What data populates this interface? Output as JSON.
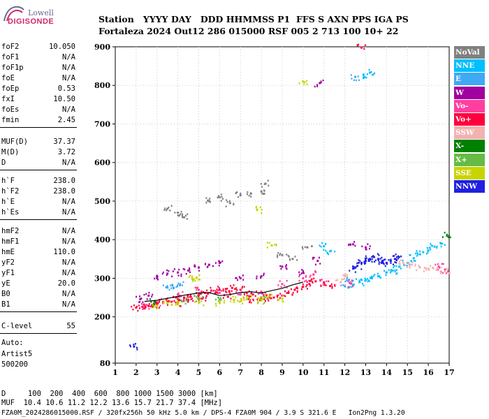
{
  "logo": {
    "top_text": "Lowell",
    "main_text": "DIGISONDE"
  },
  "header": {
    "line1": "Station   YYYY DAY   DDD HHMMSS P1  FFS S AXN PPS IGA PS",
    "line2": "Fortaleza 2024 Out12 286 015000 RSF 005 2 713 100 10+ 22"
  },
  "params_group1": [
    {
      "label": "foF2",
      "value": "10.050"
    },
    {
      "label": "foF1",
      "value": "N/A"
    },
    {
      "label": "foF1p",
      "value": "N/A"
    },
    {
      "label": "foE",
      "value": "N/A"
    },
    {
      "label": "foEp",
      "value": "0.53"
    },
    {
      "label": "fxI",
      "value": "10.50"
    },
    {
      "label": "foEs",
      "value": "N/A"
    },
    {
      "label": "fmin",
      "value": "2.45"
    }
  ],
  "params_group2": [
    {
      "label": "MUF(D)",
      "value": "37.37"
    },
    {
      "label": "M(D)",
      "value": "3.72"
    },
    {
      "label": "D",
      "value": "N/A"
    }
  ],
  "params_group3": [
    {
      "label": "h`F",
      "value": "238.0"
    },
    {
      "label": "h`F2",
      "value": "238.0"
    },
    {
      "label": "h`E",
      "value": "N/A"
    },
    {
      "label": "h`Es",
      "value": "N/A"
    }
  ],
  "params_group4": [
    {
      "label": "hmF2",
      "value": "N/A"
    },
    {
      "label": "hmF1",
      "value": "N/A"
    },
    {
      "label": "hmE",
      "value": "110.0"
    },
    {
      "label": "yF2",
      "value": "N/A"
    },
    {
      "label": "yF1",
      "value": "N/A"
    },
    {
      "label": "yE",
      "value": "20.0"
    },
    {
      "label": "B0",
      "value": "N/A"
    },
    {
      "label": "B1",
      "value": "N/A"
    }
  ],
  "params_group5": [
    {
      "label": "C-level",
      "value": "55"
    }
  ],
  "auto": {
    "line1": "Auto:",
    "line2": "Artist5",
    "line3": "500200"
  },
  "legend": [
    {
      "label": "NoVal",
      "color": "#808080"
    },
    {
      "label": "NNE",
      "color": "#00bfff"
    },
    {
      "label": "E",
      "color": "#3fa9f5"
    },
    {
      "label": "W",
      "color": "#a000a0"
    },
    {
      "label": "Vo-",
      "color": "#ff3fa0"
    },
    {
      "label": "Vo+",
      "color": "#ff003c"
    },
    {
      "label": "SSW",
      "color": "#f5b0b0"
    },
    {
      "label": "X-",
      "color": "#008000"
    },
    {
      "label": "X+",
      "color": "#66bb44"
    },
    {
      "label": "SSE",
      "color": "#c8d400"
    },
    {
      "label": "NNW",
      "color": "#2020e0"
    }
  ],
  "footer": {
    "muf_d_line": "D     100  200  400  600  800 1000 1500 3000 [km]",
    "muf_line": "MUF  10.4 10.6 11.2 12.2 13.6 15.7 21.7 37.4 [MHz]",
    "file_line": "FZA0M_2024286015000.RSF / 320fx256h 50 kHz 5.0 km / DPS-4 FZA0M 904 / 3.9 S 321.6 E   Ion2Png 1.3.20"
  },
  "chart_data": {
    "type": "scatter",
    "xlim": [
      1,
      17
    ],
    "ylim": [
      80,
      900
    ],
    "x_ticks": [
      1,
      2,
      3,
      4,
      5,
      6,
      7,
      8,
      9,
      10,
      11,
      12,
      13,
      14,
      15,
      16,
      17
    ],
    "y_ticks": [
      80,
      200,
      300,
      400,
      500,
      600,
      700,
      800,
      900
    ],
    "grid": true,
    "legend_position": "right",
    "series": [
      {
        "name": "NNE",
        "color": "#00bfff",
        "points": [
          [
            12.4,
            283
          ],
          [
            12.7,
            290
          ],
          [
            13.0,
            295
          ],
          [
            13.3,
            300
          ],
          [
            13.6,
            305
          ],
          [
            14.0,
            315
          ],
          [
            14.3,
            320
          ],
          [
            14.6,
            330
          ],
          [
            15.0,
            340
          ],
          [
            15.3,
            352
          ],
          [
            15.6,
            362
          ],
          [
            16.0,
            372
          ],
          [
            16.3,
            382
          ],
          [
            16.6,
            390
          ],
          [
            12.9,
            828
          ],
          [
            13.2,
            833
          ],
          [
            11.0,
            383
          ],
          [
            11.3,
            370
          ]
        ]
      },
      {
        "name": "E",
        "color": "#3fa9f5",
        "points": [
          [
            3.5,
            276
          ],
          [
            3.8,
            275
          ],
          [
            4.1,
            282
          ],
          [
            12.5,
            822
          ],
          [
            12.2,
            296
          ],
          [
            12.0,
            280
          ]
        ]
      },
      {
        "name": "W",
        "color": "#a000a0",
        "points": [
          [
            2.2,
            246
          ],
          [
            2.6,
            255
          ],
          [
            3.0,
            300
          ],
          [
            3.5,
            312
          ],
          [
            4.0,
            315
          ],
          [
            4.5,
            320
          ],
          [
            5.0,
            328
          ],
          [
            5.5,
            335
          ],
          [
            6.0,
            340
          ],
          [
            7.0,
            300
          ],
          [
            8.0,
            305
          ],
          [
            9.0,
            330
          ],
          [
            10.0,
            315
          ],
          [
            10.8,
            806
          ],
          [
            10.7,
            345
          ],
          [
            12.4,
            388
          ],
          [
            13.0,
            380
          ]
        ]
      },
      {
        "name": "Vo-",
        "color": "#ff3fa0",
        "points": [
          [
            2.4,
            228
          ],
          [
            3.0,
            238
          ],
          [
            4.0,
            258
          ],
          [
            5.0,
            270
          ],
          [
            6.0,
            262
          ],
          [
            7.0,
            258
          ],
          [
            8.0,
            265
          ],
          [
            9.0,
            285
          ],
          [
            10.0,
            300
          ],
          [
            10.5,
            310
          ],
          [
            11.0,
            290
          ],
          [
            12.3,
            286
          ],
          [
            16.5,
            330
          ],
          [
            16.8,
            322
          ]
        ]
      },
      {
        "name": "Vo+",
        "color": "#ff003c",
        "points": [
          [
            2.0,
            224
          ],
          [
            2.3,
            226
          ],
          [
            2.6,
            228
          ],
          [
            3.0,
            232
          ],
          [
            3.3,
            236
          ],
          [
            3.6,
            240
          ],
          [
            4.0,
            246
          ],
          [
            4.3,
            250
          ],
          [
            4.6,
            252
          ],
          [
            5.0,
            256
          ],
          [
            5.3,
            262
          ],
          [
            5.6,
            268
          ],
          [
            6.0,
            270
          ],
          [
            6.3,
            272
          ],
          [
            6.6,
            275
          ],
          [
            7.0,
            270
          ],
          [
            7.3,
            262
          ],
          [
            7.6,
            258
          ],
          [
            8.0,
            250
          ],
          [
            8.3,
            248
          ],
          [
            8.6,
            250
          ],
          [
            9.0,
            255
          ],
          [
            9.3,
            262
          ],
          [
            9.6,
            270
          ],
          [
            10.0,
            278
          ],
          [
            10.3,
            285
          ],
          [
            10.6,
            292
          ],
          [
            11.0,
            288
          ],
          [
            11.3,
            280
          ],
          [
            12.8,
            898
          ],
          [
            4.0,
            236
          ],
          [
            4.5,
            244
          ],
          [
            5.2,
            250
          ],
          [
            6.4,
            252
          ],
          [
            7.4,
            246
          ]
        ]
      },
      {
        "name": "SSW",
        "color": "#f5b0b0",
        "points": [
          [
            14.8,
            340
          ],
          [
            15.2,
            335
          ],
          [
            15.6,
            328
          ],
          [
            16.0,
            325
          ],
          [
            16.4,
            322
          ],
          [
            16.8,
            318
          ],
          [
            11.8,
            290
          ],
          [
            12.0,
            305
          ]
        ]
      },
      {
        "name": "X-",
        "color": "#008000",
        "points": [
          [
            16.9,
            410
          ],
          [
            2.9,
            238
          ]
        ]
      },
      {
        "name": "X+",
        "color": "#66bb44",
        "points": [
          [
            4.2,
            240
          ],
          [
            5.0,
            248
          ],
          [
            6.0,
            245
          ],
          [
            8.0,
            246
          ]
        ]
      },
      {
        "name": "SSE",
        "color": "#c8d400",
        "points": [
          [
            3.0,
            228
          ],
          [
            3.5,
            235
          ],
          [
            4.0,
            232
          ],
          [
            5.0,
            238
          ],
          [
            6.0,
            236
          ],
          [
            7.0,
            240
          ],
          [
            8.0,
            243
          ],
          [
            9.0,
            247
          ],
          [
            6.7,
            244
          ],
          [
            7.3,
            246
          ],
          [
            8.3,
            250
          ],
          [
            8.5,
            385
          ],
          [
            7.8,
            478
          ],
          [
            10.0,
            810
          ],
          [
            4.7,
            298
          ],
          [
            4.9,
            302
          ]
        ]
      },
      {
        "name": "NNW",
        "color": "#2020e0",
        "points": [
          [
            12.4,
            325
          ],
          [
            12.6,
            332
          ],
          [
            12.8,
            340
          ],
          [
            13.0,
            345
          ],
          [
            13.2,
            350
          ],
          [
            13.4,
            355
          ],
          [
            13.6,
            350
          ],
          [
            13.8,
            345
          ],
          [
            14.0,
            340
          ],
          [
            14.2,
            345
          ],
          [
            14.4,
            350
          ],
          [
            14.6,
            355
          ],
          [
            1.9,
            123
          ]
        ]
      },
      {
        "name": "NoVal",
        "color": "#808080",
        "points": [
          [
            3.5,
            480
          ],
          [
            4.0,
            470
          ],
          [
            4.3,
            458
          ],
          [
            5.5,
            500
          ],
          [
            6.0,
            510
          ],
          [
            6.5,
            495
          ],
          [
            7.0,
            515
          ],
          [
            7.5,
            520
          ],
          [
            8.0,
            525
          ],
          [
            8.2,
            545
          ],
          [
            9.0,
            360
          ],
          [
            9.5,
            350
          ],
          [
            10.2,
            380
          ]
        ]
      }
    ],
    "trace": [
      [
        2.4,
        240
      ],
      [
        3.0,
        243
      ],
      [
        3.5,
        248
      ],
      [
        4.0,
        253
      ],
      [
        4.5,
        258
      ],
      [
        5.0,
        262
      ],
      [
        5.5,
        263
      ],
      [
        6.0,
        255
      ],
      [
        6.5,
        258
      ],
      [
        7.0,
        263
      ],
      [
        7.5,
        265
      ],
      [
        8.0,
        262
      ],
      [
        8.5,
        268
      ],
      [
        9.0,
        274
      ],
      [
        9.5,
        283
      ],
      [
        10.0,
        290
      ]
    ]
  }
}
